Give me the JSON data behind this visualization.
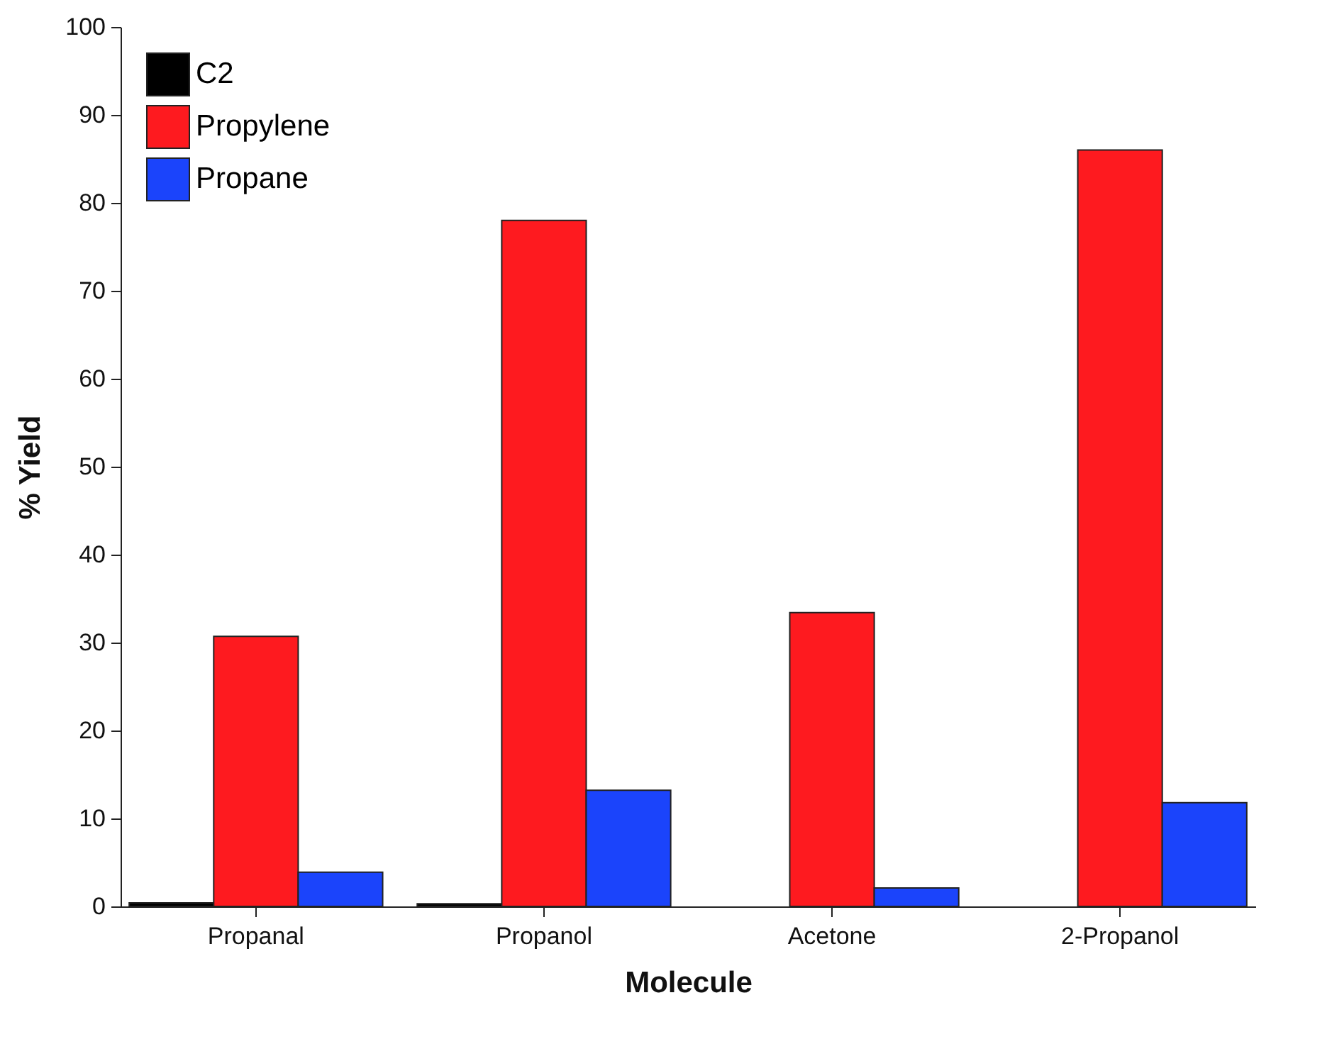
{
  "chart_data": {
    "type": "bar",
    "xlabel": "Molecule",
    "ylabel": "% Yield",
    "categories": [
      "Propanal",
      "Propanol",
      "Acetone",
      "2-Propanol"
    ],
    "series": [
      {
        "name": "C2",
        "color": "#000000",
        "values": [
          0.4,
          0.3,
          null,
          null
        ]
      },
      {
        "name": "Propylene",
        "color": "#fe1a1f",
        "values": [
          30.7,
          78.0,
          33.4,
          86.0
        ]
      },
      {
        "name": "Propane",
        "color": "#1b44fb",
        "values": [
          3.9,
          13.2,
          2.1,
          11.8
        ]
      }
    ],
    "ylim": [
      0,
      100
    ],
    "yticks": [
      0,
      10,
      20,
      30,
      40,
      50,
      60,
      70,
      80,
      90,
      100
    ],
    "grid": false,
    "legend": "top left"
  }
}
